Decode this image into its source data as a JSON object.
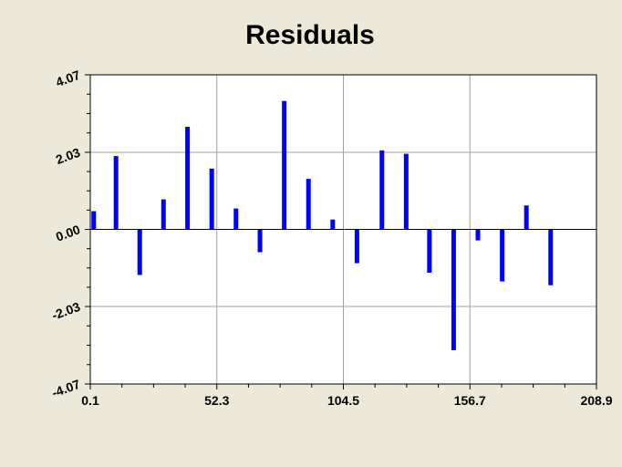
{
  "chart_data": {
    "type": "bar",
    "title": "Residuals",
    "xlabel": "",
    "ylabel": "",
    "xlim": [
      0.1,
      208.9
    ],
    "ylim": [
      -4.07,
      4.07
    ],
    "x_ticks": [
      "0.1",
      "52.3",
      "104.5",
      "156.7",
      "208.9"
    ],
    "y_ticks": [
      "-4.07",
      "-2.03",
      "0.00",
      "2.03",
      "4.07"
    ],
    "grid": true,
    "bar_color": "#0000ff",
    "points": [
      {
        "x": 1.5,
        "y": 0.48
      },
      {
        "x": 10.7,
        "y": 1.93
      },
      {
        "x": 20.5,
        "y": -1.2
      },
      {
        "x": 30.3,
        "y": 0.79
      },
      {
        "x": 40.2,
        "y": 2.7
      },
      {
        "x": 50.2,
        "y": 1.6
      },
      {
        "x": 60.2,
        "y": 0.55
      },
      {
        "x": 70.1,
        "y": -0.6
      },
      {
        "x": 80.1,
        "y": 3.38
      },
      {
        "x": 90.1,
        "y": 1.33
      },
      {
        "x": 100.1,
        "y": 0.26
      },
      {
        "x": 110.1,
        "y": -0.89
      },
      {
        "x": 120.4,
        "y": 2.08
      },
      {
        "x": 130.4,
        "y": 1.99
      },
      {
        "x": 140.0,
        "y": -1.14
      },
      {
        "x": 150.0,
        "y": -3.18
      },
      {
        "x": 160.0,
        "y": -0.29
      },
      {
        "x": 170.0,
        "y": -1.37
      },
      {
        "x": 180.0,
        "y": 0.63
      },
      {
        "x": 190.0,
        "y": -1.47
      }
    ]
  }
}
